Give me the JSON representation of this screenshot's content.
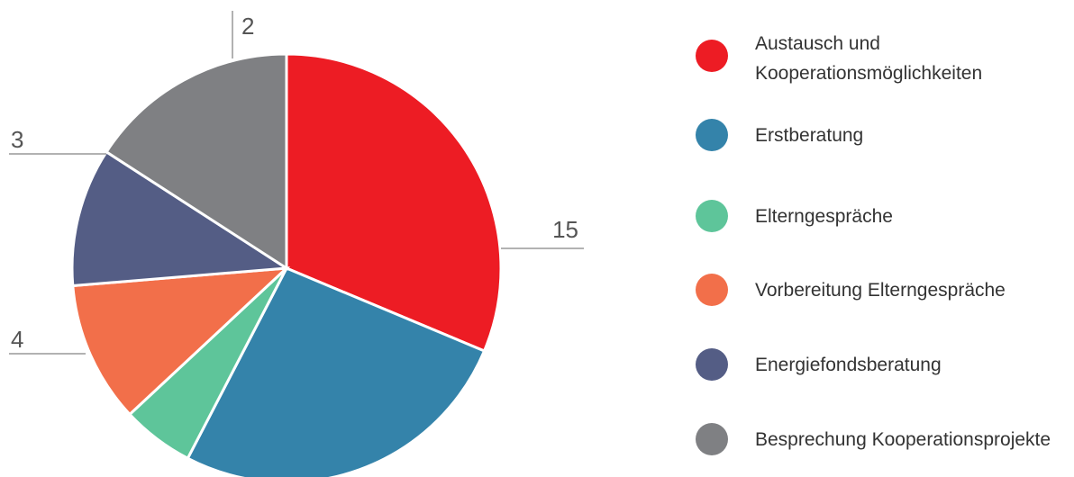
{
  "chart_data": {
    "type": "pie",
    "categories": [
      "Austausch und Kooperationsmöglichkeiten",
      "Erstberatung",
      "Elterngespräche",
      "Vorbereitung Elterngespräche",
      "Energiefondsberatung",
      "Besprechung Kooperationsprojekte"
    ],
    "values": [
      15,
      12.6,
      2.6,
      5.1,
      5.0,
      7.6
    ],
    "colors": [
      "#ed1c24",
      "#3483aa",
      "#5ec59a",
      "#f26f4a",
      "#545d85",
      "#7f8083"
    ],
    "value_labels": [
      "15",
      null,
      null,
      null,
      null,
      null
    ],
    "annotations": [
      "2",
      "3",
      "4"
    ],
    "legend": "right"
  }
}
